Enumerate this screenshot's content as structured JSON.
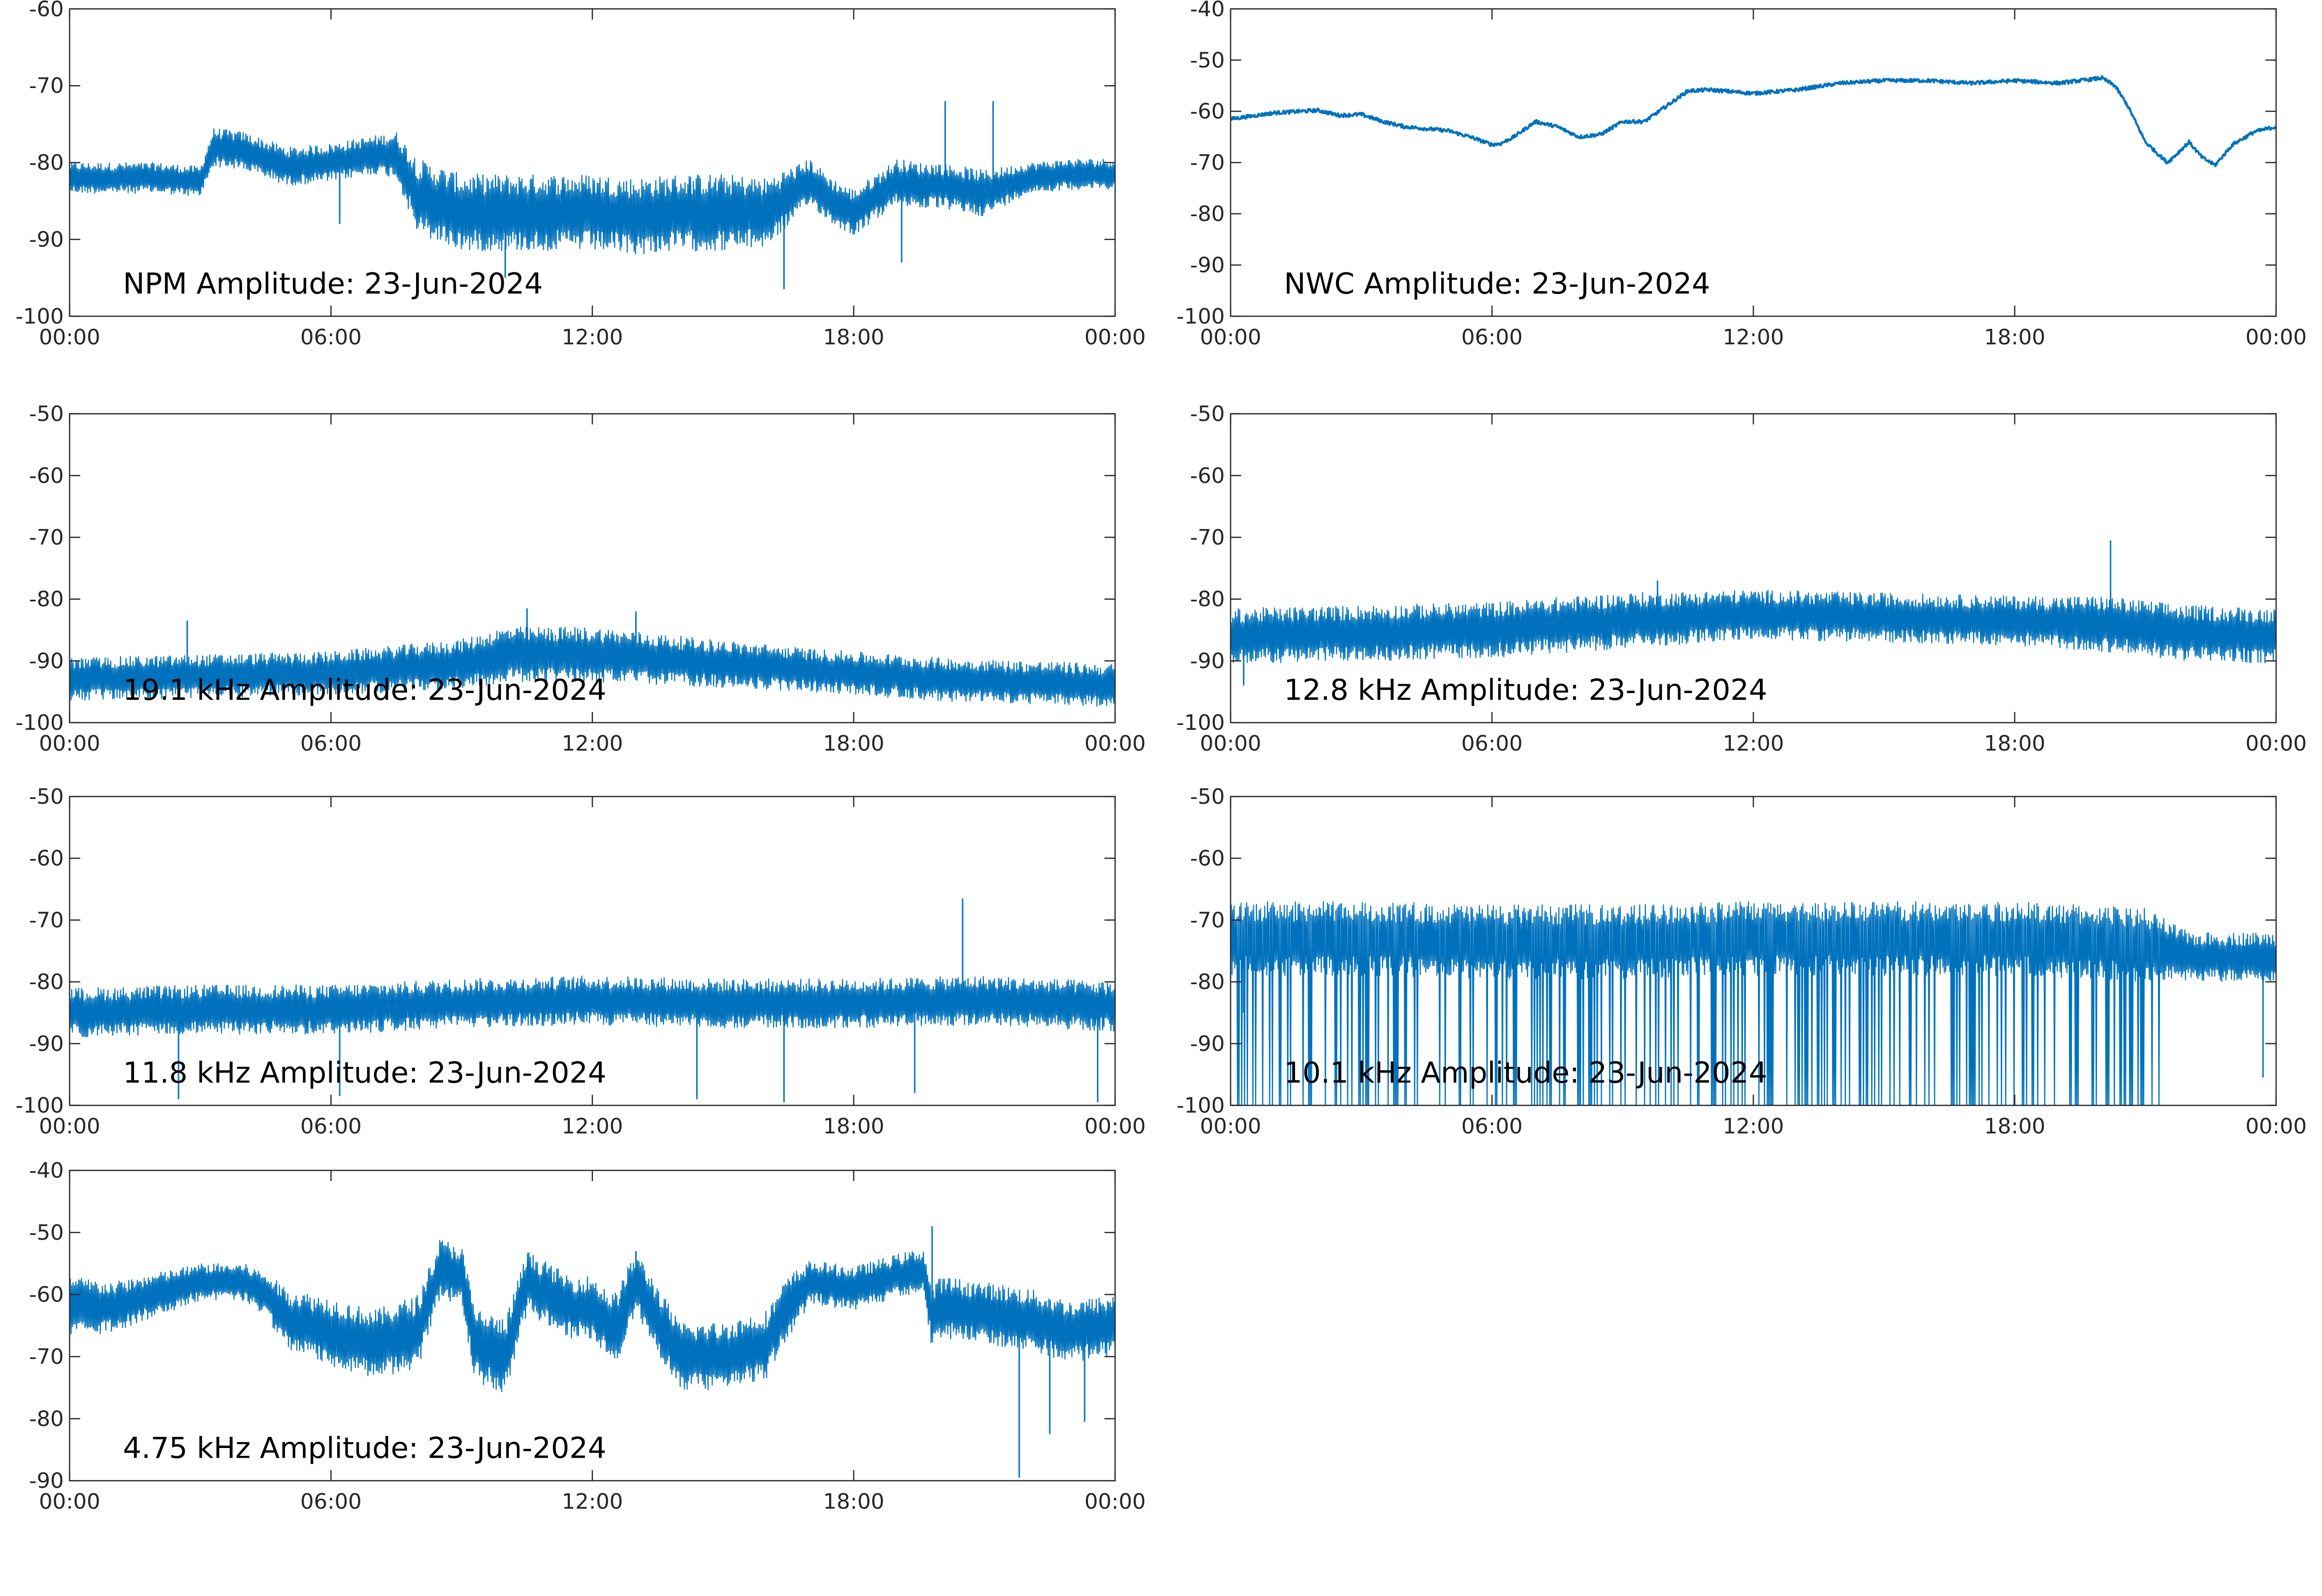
{
  "figure": {
    "line_color": "#0072BD",
    "background": "#ffffff",
    "axis_color": "#262626"
  },
  "chart_data": [
    {
      "type": "line",
      "title": "NPM Amplitude: 23-Jun-2024",
      "xlabel": "",
      "ylabel": "",
      "xlim": [
        0,
        24
      ],
      "ylim": [
        -100,
        -60
      ],
      "x_ticks": [
        "00:00",
        "06:00",
        "12:00",
        "18:00",
        "00:00"
      ],
      "y_ticks": [
        "-60",
        "-70",
        "-80",
        "-90",
        "-100"
      ],
      "grid": false,
      "series": [
        {
          "x_hours": [
            0,
            1,
            2,
            3,
            3.3,
            4,
            5,
            6,
            7,
            7.5,
            8,
            9,
            10,
            11,
            12,
            13,
            14,
            15,
            16,
            17,
            17.5,
            18,
            19,
            19.5,
            20,
            21,
            22,
            23,
            24
          ],
          "center": [
            -82,
            -82,
            -82,
            -82.5,
            -78,
            -78.5,
            -80.5,
            -80,
            -79,
            -79,
            -84.5,
            -86.5,
            -86.5,
            -86.5,
            -86.5,
            -87,
            -86.5,
            -86.5,
            -86.5,
            -82.5,
            -85,
            -86.5,
            -82.5,
            -83,
            -83,
            -84,
            -82,
            -81.5,
            -81.5
          ],
          "spread": [
            2,
            2,
            2,
            2,
            2.5,
            2.5,
            2.5,
            2.5,
            2.5,
            3,
            5,
            5,
            5,
            5,
            5,
            5,
            5,
            5,
            4.5,
            3,
            3,
            3,
            3,
            3,
            3,
            3,
            2,
            2,
            2
          ],
          "spikes": [
            [
              20.1,
              -72
            ],
            [
              21.2,
              -72
            ],
            [
              10,
              -95
            ],
            [
              16.4,
              -96.5
            ],
            [
              19.1,
              -93
            ],
            [
              6.2,
              -88
            ]
          ]
        }
      ]
    },
    {
      "type": "line",
      "title": "NWC Amplitude: 23-Jun-2024",
      "xlabel": "",
      "ylabel": "",
      "xlim": [
        0,
        24
      ],
      "ylim": [
        -100,
        -40
      ],
      "x_ticks": [
        "00:00",
        "06:00",
        "12:00",
        "18:00",
        "00:00"
      ],
      "y_ticks": [
        "-40",
        "-50",
        "-60",
        "-70",
        "-80",
        "-90",
        "-100"
      ],
      "grid": false,
      "series": [
        {
          "x_hours": [
            0,
            1,
            2,
            2.5,
            3,
            3.5,
            4,
            5,
            5.5,
            6,
            6.2,
            6.5,
            7,
            7.5,
            8,
            8.5,
            9,
            9.5,
            10,
            10.5,
            11,
            12,
            13,
            14,
            15,
            16,
            17,
            18,
            19,
            20,
            20.3,
            20.6,
            21,
            21.5,
            21.7,
            22,
            22.3,
            22.6,
            23,
            23.5,
            24
          ],
          "y": [
            -61.5,
            -60.3,
            -59.8,
            -60.8,
            -60.6,
            -62,
            -63,
            -63.8,
            -65,
            -66.5,
            -66.3,
            -65,
            -62,
            -63,
            -65,
            -64.5,
            -62,
            -62,
            -59,
            -56,
            -55.8,
            -56.5,
            -55.8,
            -54.5,
            -54,
            -54,
            -54.5,
            -54,
            -54.5,
            -53.5,
            -55,
            -59,
            -66,
            -70,
            -68.5,
            -66,
            -69,
            -70.5,
            -66.5,
            -64,
            -63
          ],
          "noise": 0.35
        }
      ]
    },
    {
      "type": "line",
      "title": "19.1 kHz Amplitude: 23-Jun-2024",
      "xlabel": "",
      "ylabel": "",
      "xlim": [
        0,
        24
      ],
      "ylim": [
        -100,
        -50
      ],
      "x_ticks": [
        "00:00",
        "06:00",
        "12:00",
        "18:00",
        "00:00"
      ],
      "y_ticks": [
        "-50",
        "-60",
        "-70",
        "-80",
        "-90",
        "-100"
      ],
      "grid": false,
      "series": [
        {
          "x_hours": [
            0,
            3,
            6,
            9,
            10,
            12,
            14,
            17,
            20,
            22,
            24
          ],
          "center": [
            -93,
            -92.5,
            -92,
            -90.5,
            -89,
            -89,
            -90,
            -91.5,
            -93,
            -93.5,
            -94
          ],
          "spread": [
            3.5,
            3.5,
            3.5,
            4,
            4.5,
            4.5,
            4,
            3.5,
            3.5,
            3.5,
            3.5
          ],
          "spikes": [
            [
              10.5,
              -81.5
            ],
            [
              13,
              -82
            ],
            [
              2.7,
              -83.5
            ]
          ]
        }
      ]
    },
    {
      "type": "line",
      "title": "12.8 kHz Amplitude: 23-Jun-2024",
      "xlabel": "",
      "ylabel": "",
      "xlim": [
        0,
        24
      ],
      "ylim": [
        -100,
        -50
      ],
      "x_ticks": [
        "00:00",
        "06:00",
        "12:00",
        "18:00",
        "00:00"
      ],
      "y_ticks": [
        "-50",
        "-60",
        "-70",
        "-80",
        "-90",
        "-100"
      ],
      "grid": false,
      "series": [
        {
          "x_hours": [
            0,
            3,
            6,
            9,
            12,
            15,
            18,
            20,
            22,
            24
          ],
          "center": [
            -86,
            -85.5,
            -85,
            -83.5,
            -82.5,
            -83,
            -83.5,
            -84,
            -85.5,
            -86
          ],
          "spread": [
            4.5,
            4.5,
            4.5,
            4.5,
            4,
            4,
            4,
            4.5,
            4.5,
            4.5
          ],
          "spikes": [
            [
              20.2,
              -70.5
            ],
            [
              0.3,
              -94
            ],
            [
              9.8,
              -77
            ]
          ]
        }
      ]
    },
    {
      "type": "line",
      "title": "11.8 kHz Amplitude: 23-Jun-2024",
      "xlabel": "",
      "ylabel": "",
      "xlim": [
        0,
        24
      ],
      "ylim": [
        -100,
        -50
      ],
      "x_ticks": [
        "00:00",
        "06:00",
        "12:00",
        "18:00",
        "00:00"
      ],
      "y_ticks": [
        "-50",
        "-60",
        "-70",
        "-80",
        "-90",
        "-100"
      ],
      "grid": false,
      "series": [
        {
          "x_hours": [
            0,
            3,
            6,
            9,
            12,
            15,
            18,
            21,
            24
          ],
          "center": [
            -85,
            -84.5,
            -84.5,
            -83.5,
            -83,
            -83.5,
            -83.5,
            -83,
            -84
          ],
          "spread": [
            4,
            4,
            4,
            4,
            4,
            4,
            4,
            4,
            4
          ],
          "spikes": [
            [
              20.5,
              -66.5
            ],
            [
              16.4,
              -99.5
            ],
            [
              23.6,
              -99.5
            ],
            [
              14.4,
              -99
            ],
            [
              2.5,
              -99
            ],
            [
              6.2,
              -98.5
            ],
            [
              19.4,
              -98
            ]
          ]
        }
      ]
    },
    {
      "type": "line",
      "title": "10.1 kHz Amplitude: 23-Jun-2024",
      "xlabel": "",
      "ylabel": "",
      "xlim": [
        0,
        24
      ],
      "ylim": [
        -100,
        -50
      ],
      "x_ticks": [
        "00:00",
        "06:00",
        "12:00",
        "18:00",
        "00:00"
      ],
      "y_ticks": [
        "-50",
        "-60",
        "-70",
        "-80",
        "-90",
        "-100"
      ],
      "grid": false,
      "series": [
        {
          "x_hours": [
            0,
            3,
            6,
            9,
            12,
            15,
            18,
            21,
            22,
            24
          ],
          "center": [
            -73,
            -73,
            -73.5,
            -73.5,
            -73,
            -73,
            -73,
            -74,
            -76,
            -76
          ],
          "spread": [
            6,
            6,
            6,
            6,
            6,
            6,
            6,
            6,
            4,
            4
          ],
          "dropout_until_hour": 21.5,
          "spikes": [
            [
              23.7,
              -95.5
            ],
            [
              0.3,
              -85
            ]
          ]
        }
      ]
    },
    {
      "type": "line",
      "title": "4.75 kHz Amplitude: 23-Jun-2024",
      "xlabel": "",
      "ylabel": "",
      "xlim": [
        0,
        24
      ],
      "ylim": [
        -90,
        -40
      ],
      "x_ticks": [
        "00:00",
        "06:00",
        "12:00",
        "18:00",
        "00:00"
      ],
      "y_ticks": [
        "-40",
        "-50",
        "-60",
        "-70",
        "-80",
        "-90"
      ],
      "grid": false,
      "series": [
        {
          "x_hours": [
            0,
            1,
            2,
            3,
            4,
            4.5,
            5,
            6,
            7,
            8,
            8.5,
            9,
            9.3,
            10,
            10.5,
            11,
            11.5,
            12,
            12.5,
            13,
            13.5,
            14,
            15,
            16,
            16.5,
            17,
            18,
            19,
            19.6,
            19.8,
            20,
            21,
            22,
            23,
            24
          ],
          "center": [
            -62,
            -62,
            -60,
            -58,
            -58,
            -60,
            -64,
            -66,
            -68,
            -66,
            -56,
            -57,
            -68,
            -70,
            -58,
            -60,
            -62,
            -62,
            -66,
            -58,
            -64,
            -70,
            -70,
            -68,
            -62,
            -58,
            -59,
            -57,
            -56,
            -64,
            -62,
            -63,
            -64,
            -66,
            -65
          ],
          "spread": [
            5,
            4,
            3.5,
            3,
            3,
            3.5,
            5,
            5.5,
            5.5,
            6,
            5,
            5,
            6,
            6,
            5,
            5,
            5,
            5,
            6,
            5,
            5.5,
            5.5,
            5.5,
            5.5,
            5,
            3.5,
            3.5,
            3.5,
            3.5,
            5,
            5,
            5,
            5,
            5,
            5
          ],
          "spikes": [
            [
              19.8,
              -49
            ],
            [
              13,
              -53
            ],
            [
              21.8,
              -89.5
            ],
            [
              22.5,
              -82.5
            ],
            [
              23.3,
              -80.5
            ]
          ]
        }
      ]
    }
  ]
}
